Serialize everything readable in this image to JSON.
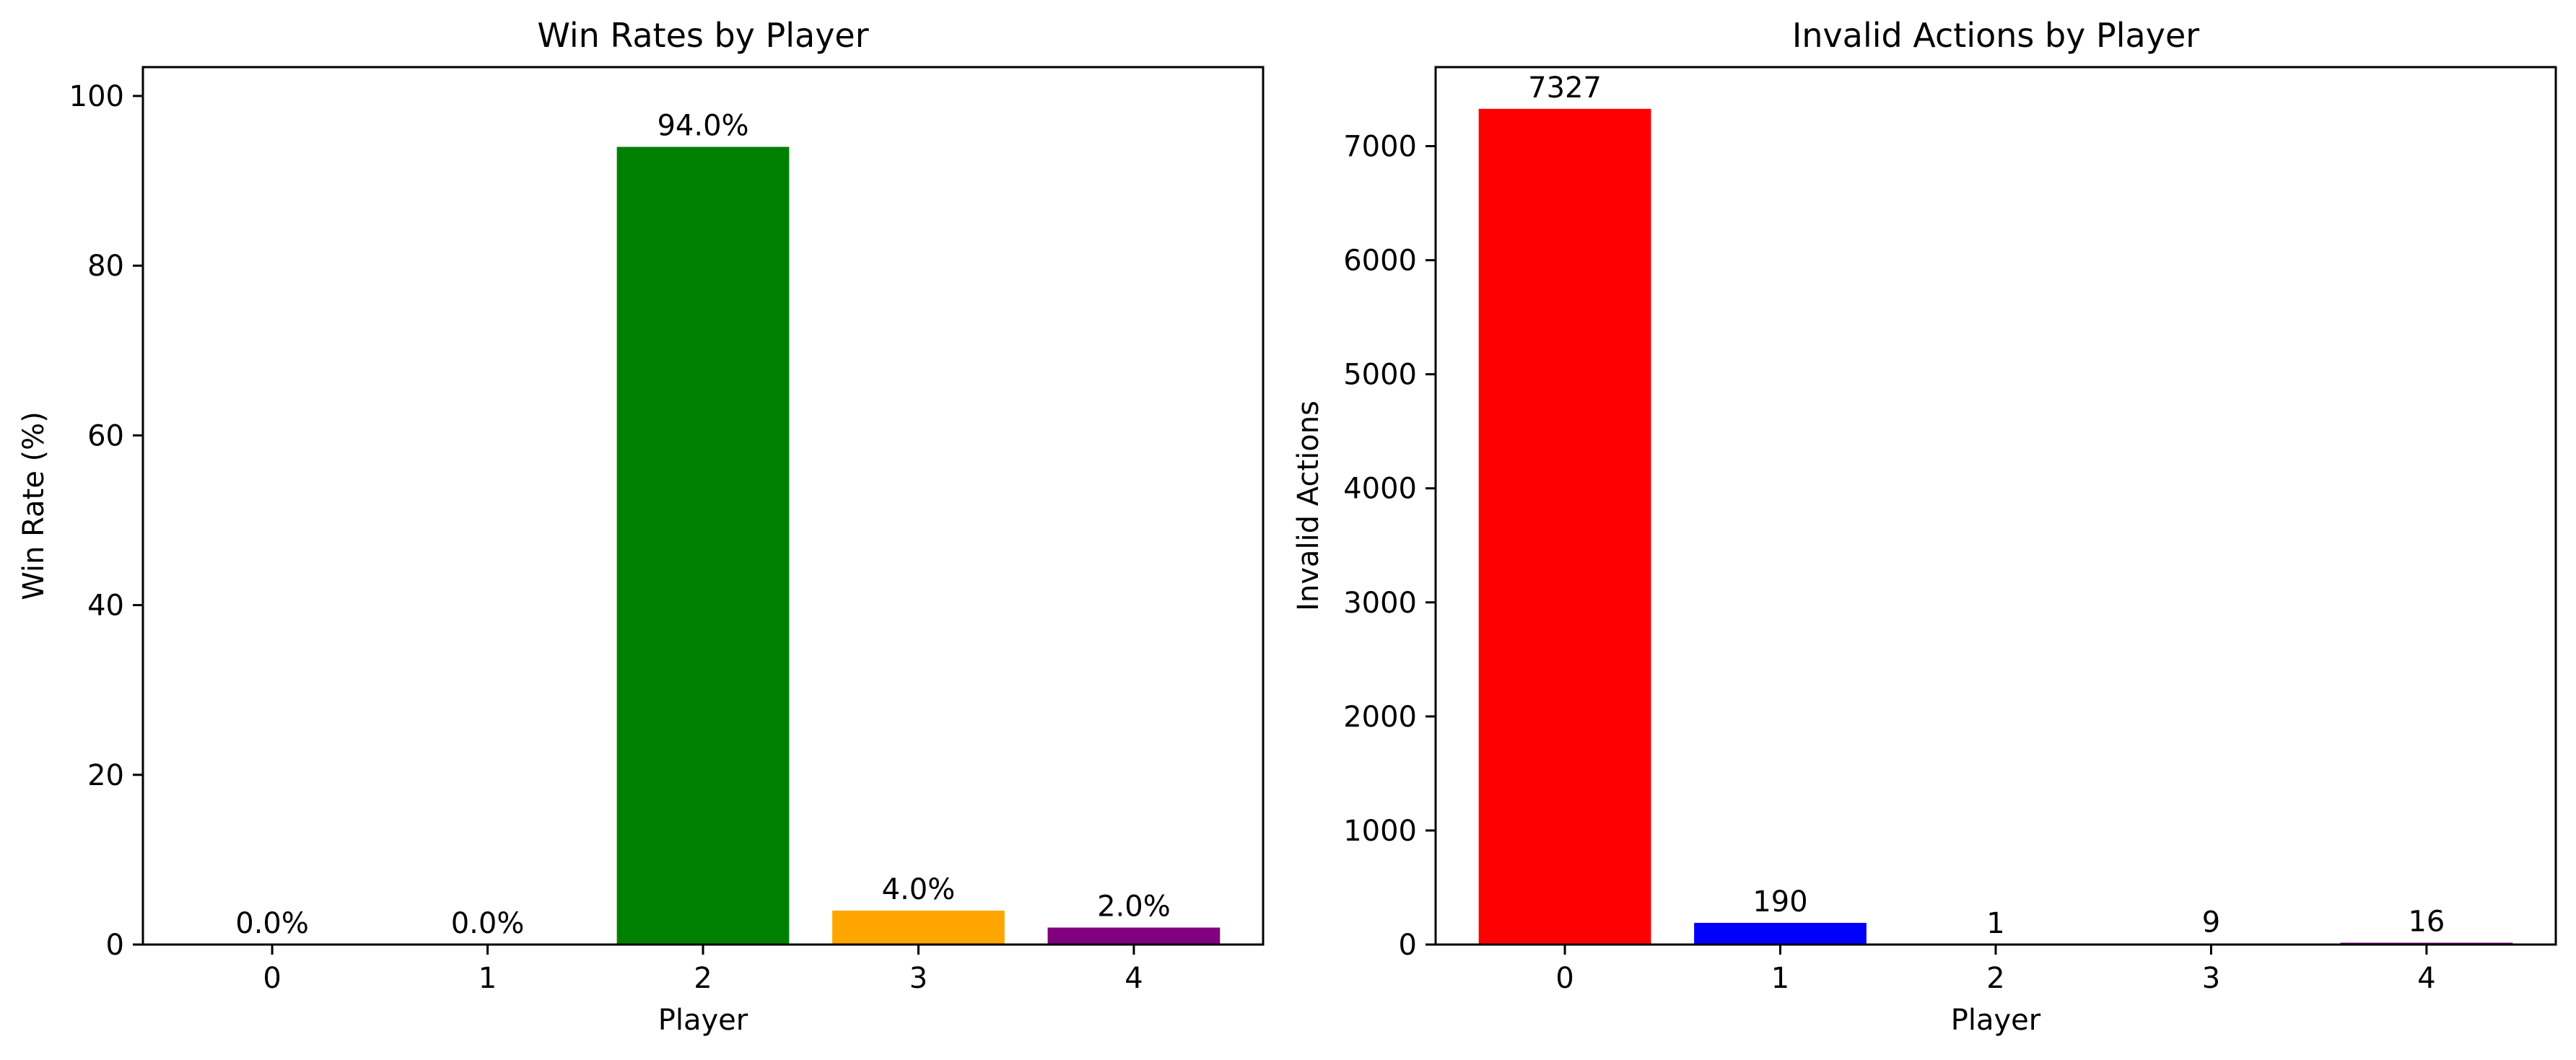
{
  "chart_data": [
    {
      "type": "bar",
      "title": "Win Rates by Player",
      "xlabel": "Player",
      "ylabel": "Win Rate (%)",
      "categories": [
        "0",
        "1",
        "2",
        "3",
        "4"
      ],
      "values": [
        0.0,
        0.0,
        94.0,
        4.0,
        2.0
      ],
      "data_labels": [
        "0.0%",
        "0.0%",
        "94.0%",
        "4.0%",
        "2.0%"
      ],
      "colors": [
        "#d62728",
        "#0000ff",
        "#008000",
        "#ffa500",
        "#800080"
      ],
      "ylim": [
        0,
        103.4
      ],
      "yticks": [
        0,
        20,
        40,
        60,
        80,
        100
      ],
      "ytick_labels": [
        "0",
        "20",
        "40",
        "60",
        "80",
        "100"
      ],
      "grid": false
    },
    {
      "type": "bar",
      "title": "Invalid Actions by Player",
      "xlabel": "Player",
      "ylabel": "Invalid Actions",
      "categories": [
        "0",
        "1",
        "2",
        "3",
        "4"
      ],
      "values": [
        7327,
        190,
        1,
        9,
        16
      ],
      "data_labels": [
        "7327",
        "190",
        "1",
        "9",
        "16"
      ],
      "colors": [
        "#ff0000",
        "#0000ff",
        "#008000",
        "#ffa500",
        "#800080"
      ],
      "ylim": [
        0,
        7693
      ],
      "yticks": [
        0,
        1000,
        2000,
        3000,
        4000,
        5000,
        6000,
        7000
      ],
      "ytick_labels": [
        "0",
        "1000",
        "2000",
        "3000",
        "4000",
        "5000",
        "6000",
        "7000"
      ],
      "grid": false
    }
  ]
}
